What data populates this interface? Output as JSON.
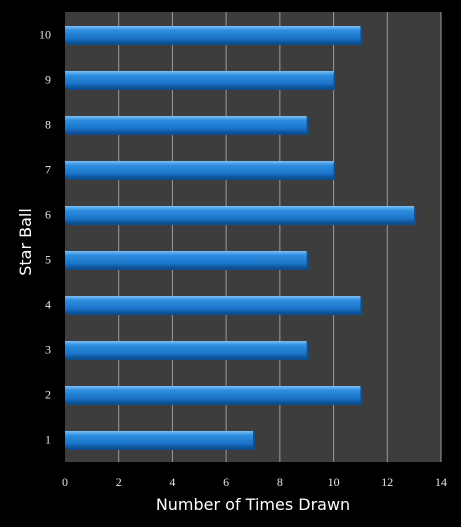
{
  "chart_data": {
    "type": "bar",
    "orientation": "horizontal",
    "xlabel": "Number of Times Drawn",
    "ylabel": "Star Ball",
    "xlim": [
      0,
      14
    ],
    "x_ticks": [
      0,
      2,
      4,
      6,
      8,
      10,
      12,
      14
    ],
    "categories": [
      "1",
      "2",
      "3",
      "4",
      "5",
      "6",
      "7",
      "8",
      "9",
      "10"
    ],
    "values": [
      7,
      11,
      9,
      11,
      9,
      13,
      10,
      9,
      10,
      11
    ],
    "grid": "vertical",
    "colors": {
      "background": "#000000",
      "plot_area": "#3d3d3d",
      "gridline": "#9a9a9a",
      "bar": "#1f7fd6",
      "bar_highlight": "#6fb6f2",
      "bar_shadow": "#0b4f94"
    }
  }
}
